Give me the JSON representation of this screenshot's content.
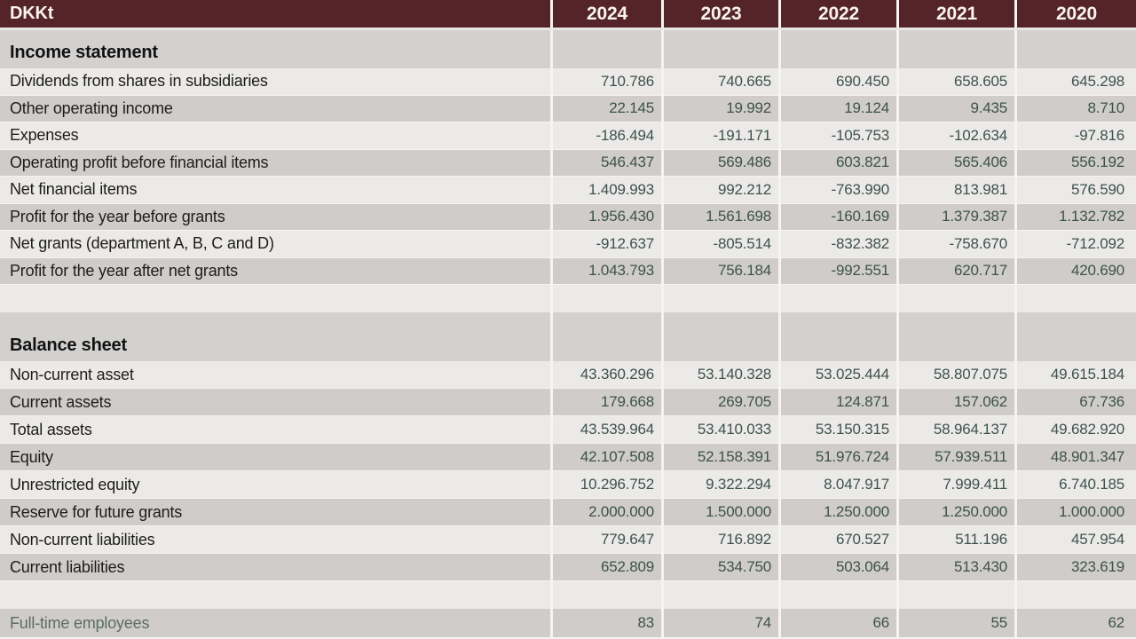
{
  "colors": {
    "header_bg": "#542428",
    "header_text": "#f8f3ee",
    "row_light": "#eceae9",
    "row_dark": "#cfccca",
    "section_bg": "#d3d1cf",
    "separator": "#f6f4f2",
    "label_text": "#1d1d1b",
    "number_text": "#3e524b",
    "employees_text": "#5c6d66"
  },
  "header": {
    "unit_label": "DKKt",
    "years": [
      "2024",
      "2023",
      "2022",
      "2021",
      "2020"
    ]
  },
  "table": {
    "income": {
      "title": "Income statement",
      "rows": [
        {
          "label": "Dividends from shares in subsidiaries",
          "values": [
            "710.786",
            "740.665",
            "690.450",
            "658.605",
            "645.298"
          ]
        },
        {
          "label": "Other operating income",
          "values": [
            "22.145",
            "19.992",
            "19.124",
            "9.435",
            "8.710"
          ]
        },
        {
          "label": "Expenses",
          "values": [
            "-186.494",
            "-191.171",
            "-105.753",
            "-102.634",
            "-97.816"
          ]
        },
        {
          "label": "Operating profit before financial items",
          "values": [
            "546.437",
            "569.486",
            "603.821",
            "565.406",
            "556.192"
          ]
        },
        {
          "label": "Net financial items",
          "values": [
            "1.409.993",
            "992.212",
            "-763.990",
            "813.981",
            "576.590"
          ]
        },
        {
          "label": "Profit for the year before grants",
          "values": [
            "1.956.430",
            "1.561.698",
            "-160.169",
            "1.379.387",
            "1.132.782"
          ]
        },
        {
          "label": "Net grants (department A, B, C and D)",
          "values": [
            "-912.637",
            "-805.514",
            "-832.382",
            "-758.670",
            "-712.092"
          ]
        },
        {
          "label": "Profit for the year after net grants",
          "values": [
            "1.043.793",
            "756.184",
            "-992.551",
            "620.717",
            "420.690"
          ]
        }
      ]
    },
    "balance": {
      "title": "Balance sheet",
      "rows": [
        {
          "label": "Non-current asset",
          "values": [
            "43.360.296",
            "53.140.328",
            "53.025.444",
            "58.807.075",
            "49.615.184"
          ]
        },
        {
          "label": "Current assets",
          "values": [
            "179.668",
            "269.705",
            "124.871",
            "157.062",
            "67.736"
          ]
        },
        {
          "label": "Total assets",
          "values": [
            "43.539.964",
            "53.410.033",
            "53.150.315",
            "58.964.137",
            "49.682.920"
          ]
        },
        {
          "label": "Equity",
          "values": [
            "42.107.508",
            "52.158.391",
            "51.976.724",
            "57.939.511",
            "48.901.347"
          ]
        },
        {
          "label": "Unrestricted equity",
          "values": [
            "10.296.752",
            "9.322.294",
            "8.047.917",
            "7.999.411",
            "6.740.185"
          ]
        },
        {
          "label": "Reserve for future grants",
          "values": [
            "2.000.000",
            "1.500.000",
            "1.250.000",
            "1.250.000",
            "1.000.000"
          ]
        },
        {
          "label": "Non-current liabilities",
          "values": [
            "779.647",
            "716.892",
            "670.527",
            "511.196",
            "457.954"
          ]
        },
        {
          "label": "Current liabilities",
          "values": [
            "652.809",
            "534.750",
            "503.064",
            "513.430",
            "323.619"
          ]
        }
      ]
    },
    "employees": {
      "label": "Full-time employees",
      "values": [
        "83",
        "74",
        "66",
        "55",
        "62"
      ]
    }
  }
}
